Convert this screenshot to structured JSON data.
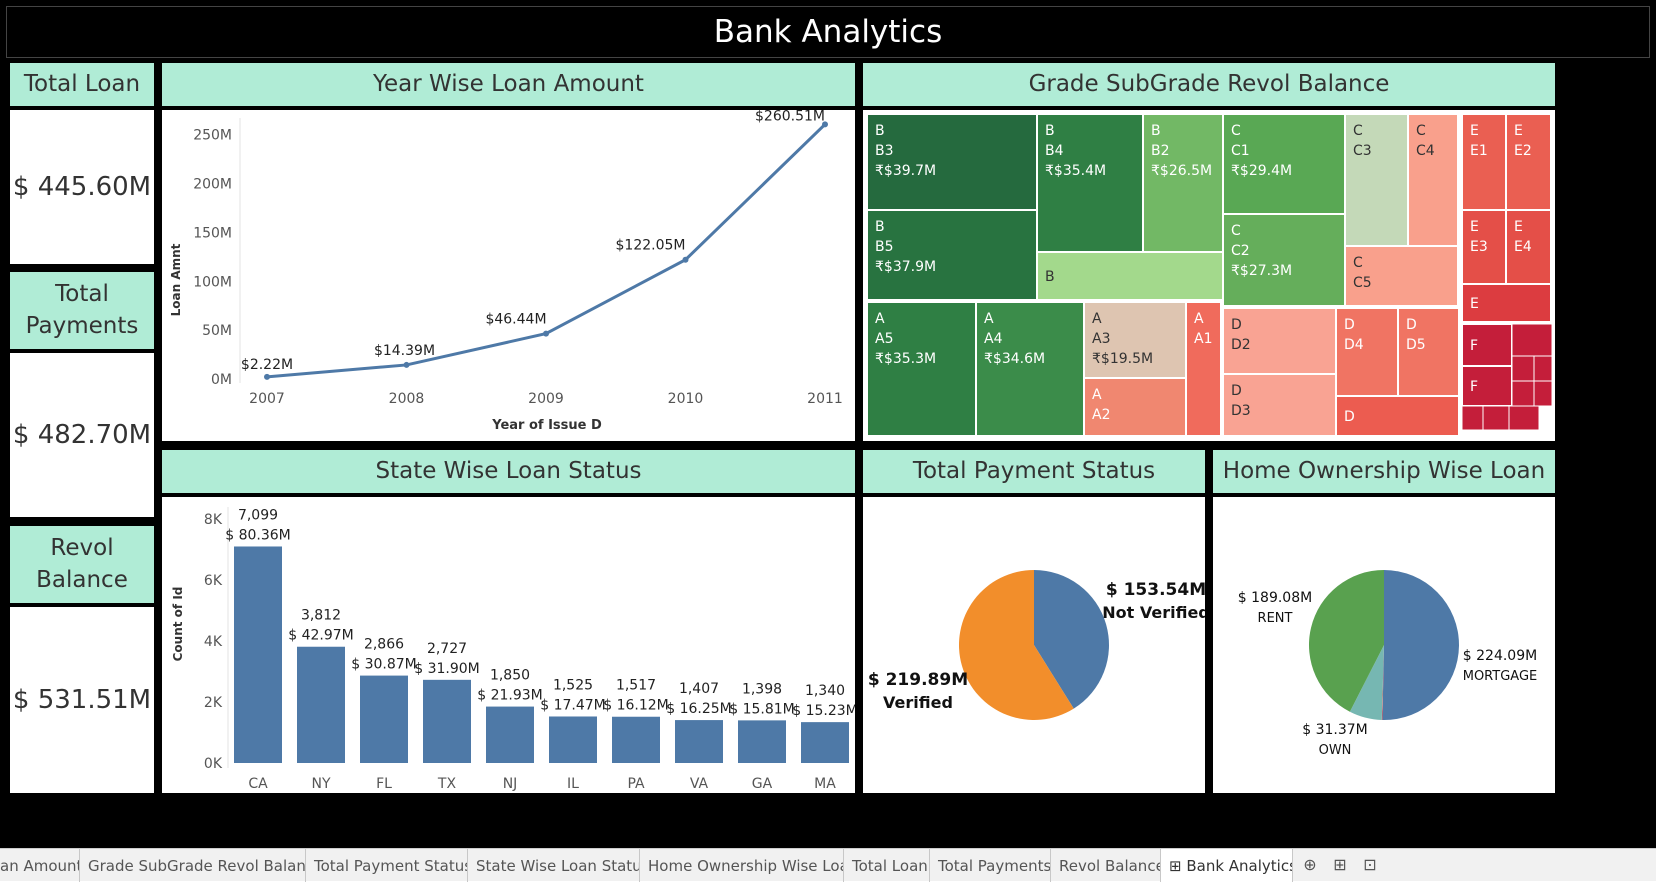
{
  "dashboard": {
    "title": "Bank Analytics"
  },
  "kpis": {
    "total_loan": {
      "label": "Total Loan",
      "value": "$ 445.60M"
    },
    "total_payments": {
      "label": "Total\nPayments",
      "value": "$ 482.70M"
    },
    "revol_balance": {
      "label": "Revol\nBalance",
      "value": "$ 531.51M"
    }
  },
  "year_panel": {
    "title": "Year Wise Loan Amount"
  },
  "grade_panel": {
    "title": "Grade SubGrade Revol Balance"
  },
  "state_panel": {
    "title": "State Wise Loan Status"
  },
  "payment_panel": {
    "title": "Total Payment Status"
  },
  "home_panel": {
    "title": "Home Ownership Wise Loan"
  },
  "chart_data": [
    {
      "type": "line",
      "title": "Year Wise Loan Amount",
      "xlabel": "Year of Issue D",
      "ylabel": "Loan Amnt",
      "x": [
        "2007",
        "2008",
        "2009",
        "2010",
        "2011"
      ],
      "values": [
        2.22,
        14.39,
        46.44,
        122.05,
        260.51
      ],
      "data_labels": [
        "$2.22M",
        "$14.39M",
        "$46.44M",
        "$122.05M",
        "$260.51M"
      ],
      "yticks": [
        "0M",
        "50M",
        "100M",
        "150M",
        "200M",
        "250M"
      ],
      "ylim": [
        0,
        265
      ],
      "color": "#4e79a7",
      "grid": false
    },
    {
      "type": "treemap",
      "title": "Grade SubGrade Revol Balance",
      "cells": [
        {
          "grade": "B",
          "sub": "B3",
          "value": "₹$39.7M",
          "color": "#256a3e"
        },
        {
          "grade": "B",
          "sub": "B5",
          "value": "₹$37.9M",
          "color": "#287340"
        },
        {
          "grade": "B",
          "sub": "B4",
          "value": "₹$35.4M",
          "color": "#2f7f44"
        },
        {
          "grade": "B",
          "sub": "B2",
          "value": "₹$26.5M",
          "color": "#72b865"
        },
        {
          "grade": "B",
          "sub": "",
          "value": "",
          "color": "#a3d98c"
        },
        {
          "grade": "C",
          "sub": "C1",
          "value": "₹$29.4M",
          "color": "#59a854"
        },
        {
          "grade": "C",
          "sub": "C2",
          "value": "₹$27.3M",
          "color": "#65ae5b"
        },
        {
          "grade": "C",
          "sub": "C3",
          "value": "",
          "color": "#c4d9b8"
        },
        {
          "grade": "C",
          "sub": "C4",
          "value": "",
          "color": "#f9a08c"
        },
        {
          "grade": "C",
          "sub": "C5",
          "value": "",
          "color": "#f9a08c"
        },
        {
          "grade": "A",
          "sub": "A5",
          "value": "₹$35.3M",
          "color": "#2f7f44"
        },
        {
          "grade": "A",
          "sub": "A4",
          "value": "₹$34.6M",
          "color": "#3b8c4a"
        },
        {
          "grade": "A",
          "sub": "A3",
          "value": "₹$19.5M",
          "color": "#dec5b1"
        },
        {
          "grade": "A",
          "sub": "A2",
          "value": "",
          "color": "#f08770"
        },
        {
          "grade": "A",
          "sub": "A1",
          "value": "",
          "color": "#f06b5c"
        },
        {
          "grade": "D",
          "sub": "D2",
          "value": "",
          "color": "#f9a393"
        },
        {
          "grade": "D",
          "sub": "D3",
          "value": "",
          "color": "#f9a393"
        },
        {
          "grade": "D",
          "sub": "D4",
          "value": "",
          "color": "#f07463"
        },
        {
          "grade": "D",
          "sub": "D5",
          "value": "",
          "color": "#f07463"
        },
        {
          "grade": "D",
          "sub": "",
          "value": "",
          "color": "#ec5c50"
        },
        {
          "grade": "E",
          "sub": "E1",
          "value": "",
          "color": "#ea5f52"
        },
        {
          "grade": "E",
          "sub": "E2",
          "value": "",
          "color": "#ea5f52"
        },
        {
          "grade": "E",
          "sub": "E3",
          "value": "",
          "color": "#e44f48"
        },
        {
          "grade": "E",
          "sub": "E4",
          "value": "",
          "color": "#e44f48"
        },
        {
          "grade": "E",
          "sub": "",
          "value": "",
          "color": "#dc3c40"
        },
        {
          "grade": "F",
          "sub": "",
          "value": "",
          "color": "#c41e3a"
        },
        {
          "grade": "F",
          "sub": "",
          "value": "",
          "color": "#c41e3a"
        }
      ]
    },
    {
      "type": "bar",
      "title": "State Wise Loan Status",
      "ylabel": "Count of Id",
      "categories": [
        "CA",
        "NY",
        "FL",
        "TX",
        "NJ",
        "IL",
        "PA",
        "VA",
        "GA",
        "MA"
      ],
      "values": [
        7099,
        3812,
        2866,
        2727,
        1850,
        1525,
        1517,
        1407,
        1398,
        1340
      ],
      "count_labels": [
        "7,099",
        "3,812",
        "2,866",
        "2,727",
        "1,850",
        "1,525",
        "1,517",
        "1,407",
        "1,398",
        "1,340"
      ],
      "amounts": [
        "$ 80.36M",
        "$ 42.97M",
        "$ 30.87M",
        "$ 31.90M",
        "$ 21.93M",
        "$ 17.47M",
        "$ 16.12M",
        "$ 16.25M",
        "$ 15.81M",
        "$ 15.23M"
      ],
      "yticks": [
        "0K",
        "2K",
        "4K",
        "6K",
        "8K"
      ],
      "ylim": [
        0,
        8000
      ],
      "color": "#4e79a7",
      "grid": false
    },
    {
      "type": "pie",
      "title": "Total Payment Status",
      "slices": [
        {
          "name": "Not Verified",
          "value": 153.54,
          "label": "$ 153.54M",
          "color": "#4e79a7"
        },
        {
          "name": "Verified",
          "value": 219.89,
          "label": "$ 219.89M",
          "color": "#f28e2b"
        }
      ]
    },
    {
      "type": "pie",
      "title": "Home Ownership Wise Loan",
      "slices": [
        {
          "name": "MORTGAGE",
          "value": 224.09,
          "label": "$ 224.09M",
          "color": "#4e79a7"
        },
        {
          "name": "",
          "value": 0.6,
          "label": "",
          "color": "#e15759"
        },
        {
          "name": "OWN",
          "value": 31.37,
          "label": "$ 31.37M",
          "color": "#76b7b2"
        },
        {
          "name": "RENT",
          "value": 189.08,
          "label": "$ 189.08M",
          "color": "#59a14f"
        }
      ]
    }
  ],
  "tabs": {
    "items": [
      "an Amount",
      "Grade SubGrade Revol Balance",
      "Total Payment Status",
      "State Wise Loan Status",
      "Home Ownership Wise Loan",
      "Total Loan",
      "Total Payments",
      "Revol Balance",
      "Bank Analytics"
    ],
    "active": "Bank Analytics",
    "icons": [
      "new-worksheet-icon",
      "new-dashboard-icon",
      "new-story-icon"
    ]
  }
}
